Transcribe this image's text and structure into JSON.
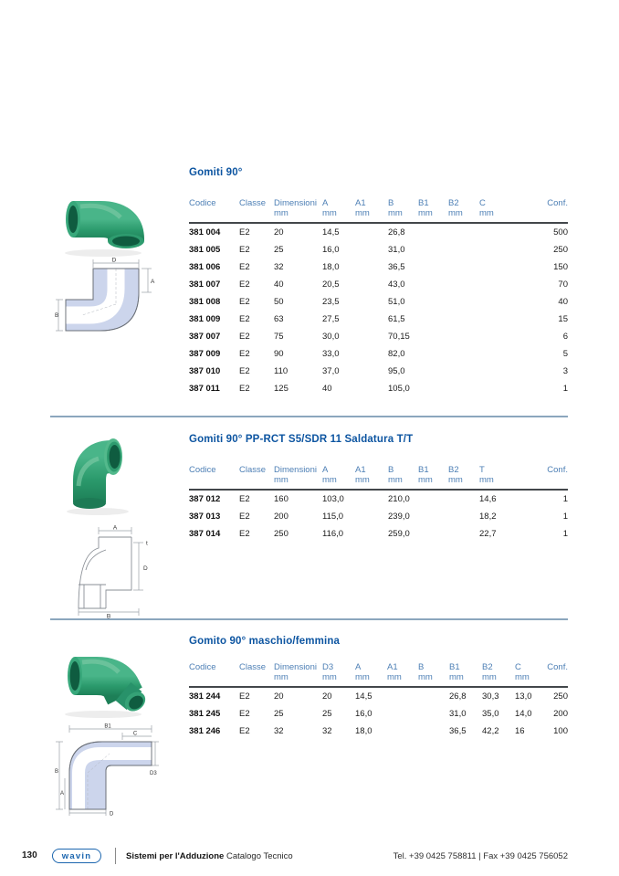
{
  "sections": [
    {
      "title": "Gomiti 90°",
      "columns": [
        {
          "label": "Codice",
          "unit": ""
        },
        {
          "label": "Classe",
          "unit": ""
        },
        {
          "label": "Dimensioni",
          "unit": "mm"
        },
        {
          "label": "A",
          "unit": "mm"
        },
        {
          "label": "A1",
          "unit": "mm"
        },
        {
          "label": "B",
          "unit": "mm"
        },
        {
          "label": "B1",
          "unit": "mm"
        },
        {
          "label": "B2",
          "unit": "mm"
        },
        {
          "label": "C",
          "unit": "mm"
        },
        {
          "label": "Conf.",
          "unit": ""
        }
      ],
      "rows": [
        [
          "381 004",
          "E2",
          "20",
          "14,5",
          "",
          "26,8",
          "",
          "",
          "",
          "500"
        ],
        [
          "381 005",
          "E2",
          "25",
          "16,0",
          "",
          "31,0",
          "",
          "",
          "",
          "250"
        ],
        [
          "381 006",
          "E2",
          "32",
          "18,0",
          "",
          "36,5",
          "",
          "",
          "",
          "150"
        ],
        [
          "381 007",
          "E2",
          "40",
          "20,5",
          "",
          "43,0",
          "",
          "",
          "",
          "70"
        ],
        [
          "381 008",
          "E2",
          "50",
          "23,5",
          "",
          "51,0",
          "",
          "",
          "",
          "40"
        ],
        [
          "381 009",
          "E2",
          "63",
          "27,5",
          "",
          "61,5",
          "",
          "",
          "",
          "15"
        ],
        [
          "387 007",
          "E2",
          "75",
          "30,0",
          "",
          "70,15",
          "",
          "",
          "",
          "6"
        ],
        [
          "387 009",
          "E2",
          "90",
          "33,0",
          "",
          "82,0",
          "",
          "",
          "",
          "5"
        ],
        [
          "387 010",
          "E2",
          "110",
          "37,0",
          "",
          "95,0",
          "",
          "",
          "",
          "3"
        ],
        [
          "387 011",
          "E2",
          "125",
          "40",
          "",
          "105,0",
          "",
          "",
          "",
          "1"
        ]
      ],
      "diagram_labels": [
        "D",
        "A",
        "B"
      ]
    },
    {
      "title": "Gomiti 90° PP-RCT S5/SDR 11 Saldatura T/T",
      "columns": [
        {
          "label": "Codice",
          "unit": ""
        },
        {
          "label": "Classe",
          "unit": ""
        },
        {
          "label": "Dimensioni",
          "unit": "mm"
        },
        {
          "label": "A",
          "unit": "mm"
        },
        {
          "label": "A1",
          "unit": "mm"
        },
        {
          "label": "B",
          "unit": "mm"
        },
        {
          "label": "B1",
          "unit": "mm"
        },
        {
          "label": "B2",
          "unit": "mm"
        },
        {
          "label": "T",
          "unit": "mm"
        },
        {
          "label": "Conf.",
          "unit": ""
        }
      ],
      "rows": [
        [
          "387 012",
          "E2",
          "160",
          "103,0",
          "",
          "210,0",
          "",
          "",
          "14,6",
          "1"
        ],
        [
          "387 013",
          "E2",
          "200",
          "115,0",
          "",
          "239,0",
          "",
          "",
          "18,2",
          "1"
        ],
        [
          "387 014",
          "E2",
          "250",
          "116,0",
          "",
          "259,0",
          "",
          "",
          "22,7",
          "1"
        ]
      ],
      "diagram_labels": [
        "A",
        "t",
        "D",
        "B"
      ]
    },
    {
      "title": "Gomito 90° maschio/femmina",
      "columns": [
        {
          "label": "Codice",
          "unit": ""
        },
        {
          "label": "Classe",
          "unit": ""
        },
        {
          "label": "Dimensioni",
          "unit": "mm"
        },
        {
          "label": "D3",
          "unit": "mm"
        },
        {
          "label": "A",
          "unit": "mm"
        },
        {
          "label": "A1",
          "unit": "mm"
        },
        {
          "label": "B",
          "unit": "mm"
        },
        {
          "label": "B1",
          "unit": "mm"
        },
        {
          "label": "B2",
          "unit": "mm"
        },
        {
          "label": "C",
          "unit": "mm"
        },
        {
          "label": "Conf.",
          "unit": ""
        }
      ],
      "rows": [
        [
          "381 244",
          "E2",
          "20",
          "20",
          "14,5",
          "",
          "",
          "26,8",
          "30,3",
          "13,0",
          "250"
        ],
        [
          "381 245",
          "E2",
          "25",
          "25",
          "16,0",
          "",
          "",
          "31,0",
          "35,0",
          "14,0",
          "200"
        ],
        [
          "381 246",
          "E2",
          "32",
          "32",
          "18,0",
          "",
          "",
          "36,5",
          "42,2",
          "16",
          "100"
        ]
      ],
      "diagram_labels": [
        "B1",
        "C",
        "D3",
        "B",
        "A",
        "D"
      ]
    }
  ],
  "footer": {
    "page_number": "130",
    "logo_text": "wavin",
    "series_title": "Sistemi per l'Adduzione",
    "catalog_title": "Catalogo Tecnico",
    "contact": "Tel. +39 0425 758811  |  Fax +39 0425 756052"
  },
  "colors": {
    "title_blue": "#0d55a1",
    "header_blue": "#4d7fb5",
    "body_text": "#1b1b1b",
    "separator": "#8ba6bd",
    "diagram_fill": "#ccd5ec",
    "product_green": "#2fa374",
    "logo_blue": "#1c66af"
  }
}
